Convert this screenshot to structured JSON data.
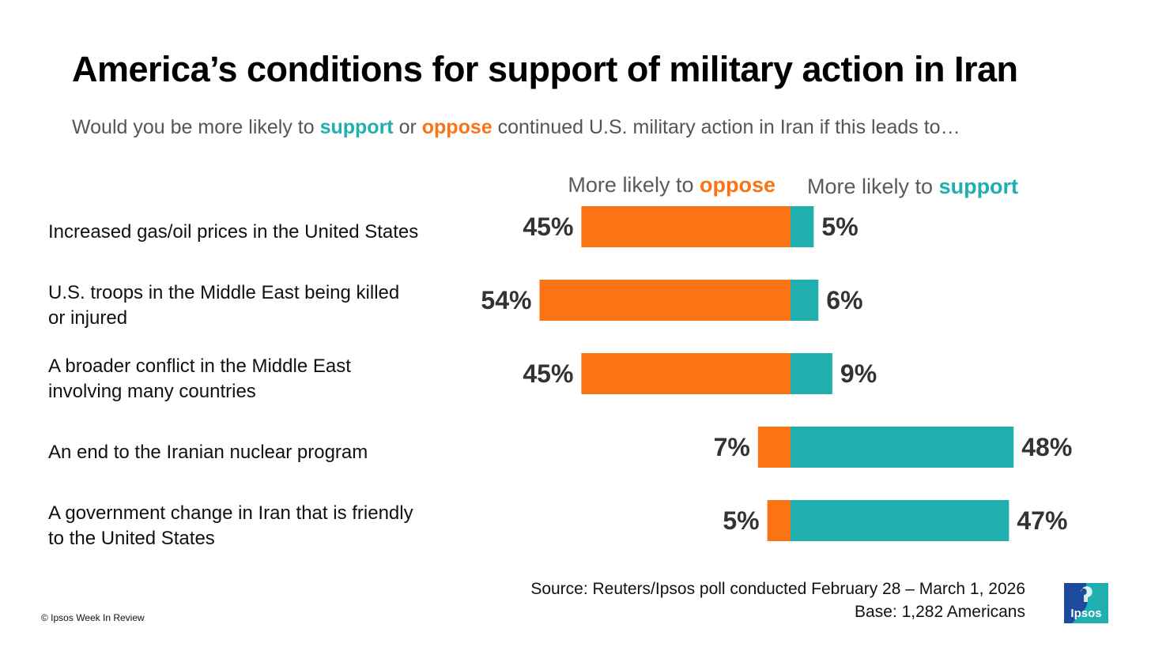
{
  "header": {
    "title": "America’s conditions for support of military action in Iran",
    "subtitle_pre": "Would you be more likely to ",
    "subtitle_support": "support",
    "subtitle_mid": " or ",
    "subtitle_oppose": "oppose",
    "subtitle_post": " continued U.S. military action in Iran if this leads to…"
  },
  "colors": {
    "oppose": "#FA7315",
    "support": "#1EAFAE",
    "label_gray": "#5A5A5A",
    "value_dark": "#333333"
  },
  "chart_data": {
    "type": "bar",
    "orientation": "horizontal-diverging",
    "legend": {
      "oppose_prefix": "More likely to ",
      "oppose_word": "oppose",
      "support_prefix": "More likely to ",
      "support_word": "support"
    },
    "categories": [
      "Increased gas/oil prices in the United States",
      "U.S. troops in the Middle East being killed or injured",
      "A broader conflict in the Middle East involving many countries",
      "An end to the Iranian nuclear program",
      "A government change in Iran that is friendly to the United States"
    ],
    "series": [
      {
        "name": "More likely to oppose",
        "values": [
          45,
          54,
          45,
          7,
          5
        ]
      },
      {
        "name": "More likely to support",
        "values": [
          5,
          6,
          9,
          48,
          47
        ]
      }
    ],
    "value_labels": {
      "oppose": [
        "45%",
        "54%",
        "45%",
        "7%",
        "5%"
      ],
      "support": [
        "5%",
        "6%",
        "9%",
        "48%",
        "47%"
      ]
    }
  },
  "footer": {
    "source_line1": "Source: Reuters/Ipsos poll conducted February 28 – March 1, 2026",
    "source_line2": "Base: 1,282 Americans",
    "copyright": "© Ipsos Week In Review",
    "logo_text": "Ipsos"
  }
}
